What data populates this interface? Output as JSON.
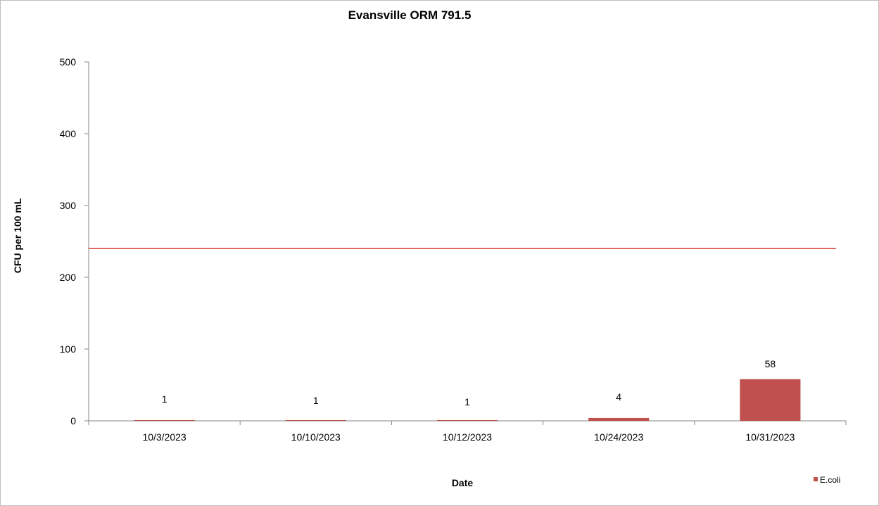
{
  "chart_data": {
    "type": "bar",
    "title": "Evansville ORM 791.5",
    "xlabel": "Date",
    "ylabel": "CFU per 100 mL",
    "categories": [
      "10/3/2023",
      "10/10/2023",
      "10/12/2023",
      "10/24/2023",
      "10/31/2023"
    ],
    "series": [
      {
        "name": "E.coli",
        "values": [
          1,
          1,
          1,
          4,
          58
        ],
        "color": "#c0504d"
      }
    ],
    "data_labels": [
      "1",
      "1",
      "1",
      "4",
      "58"
    ],
    "reference_line": {
      "value": 240,
      "color": "#e0403a"
    },
    "ylim": [
      0,
      500
    ],
    "yticks": [
      0,
      100,
      200,
      300,
      400,
      500
    ],
    "grid": false,
    "legend_position": "bottom-right"
  }
}
